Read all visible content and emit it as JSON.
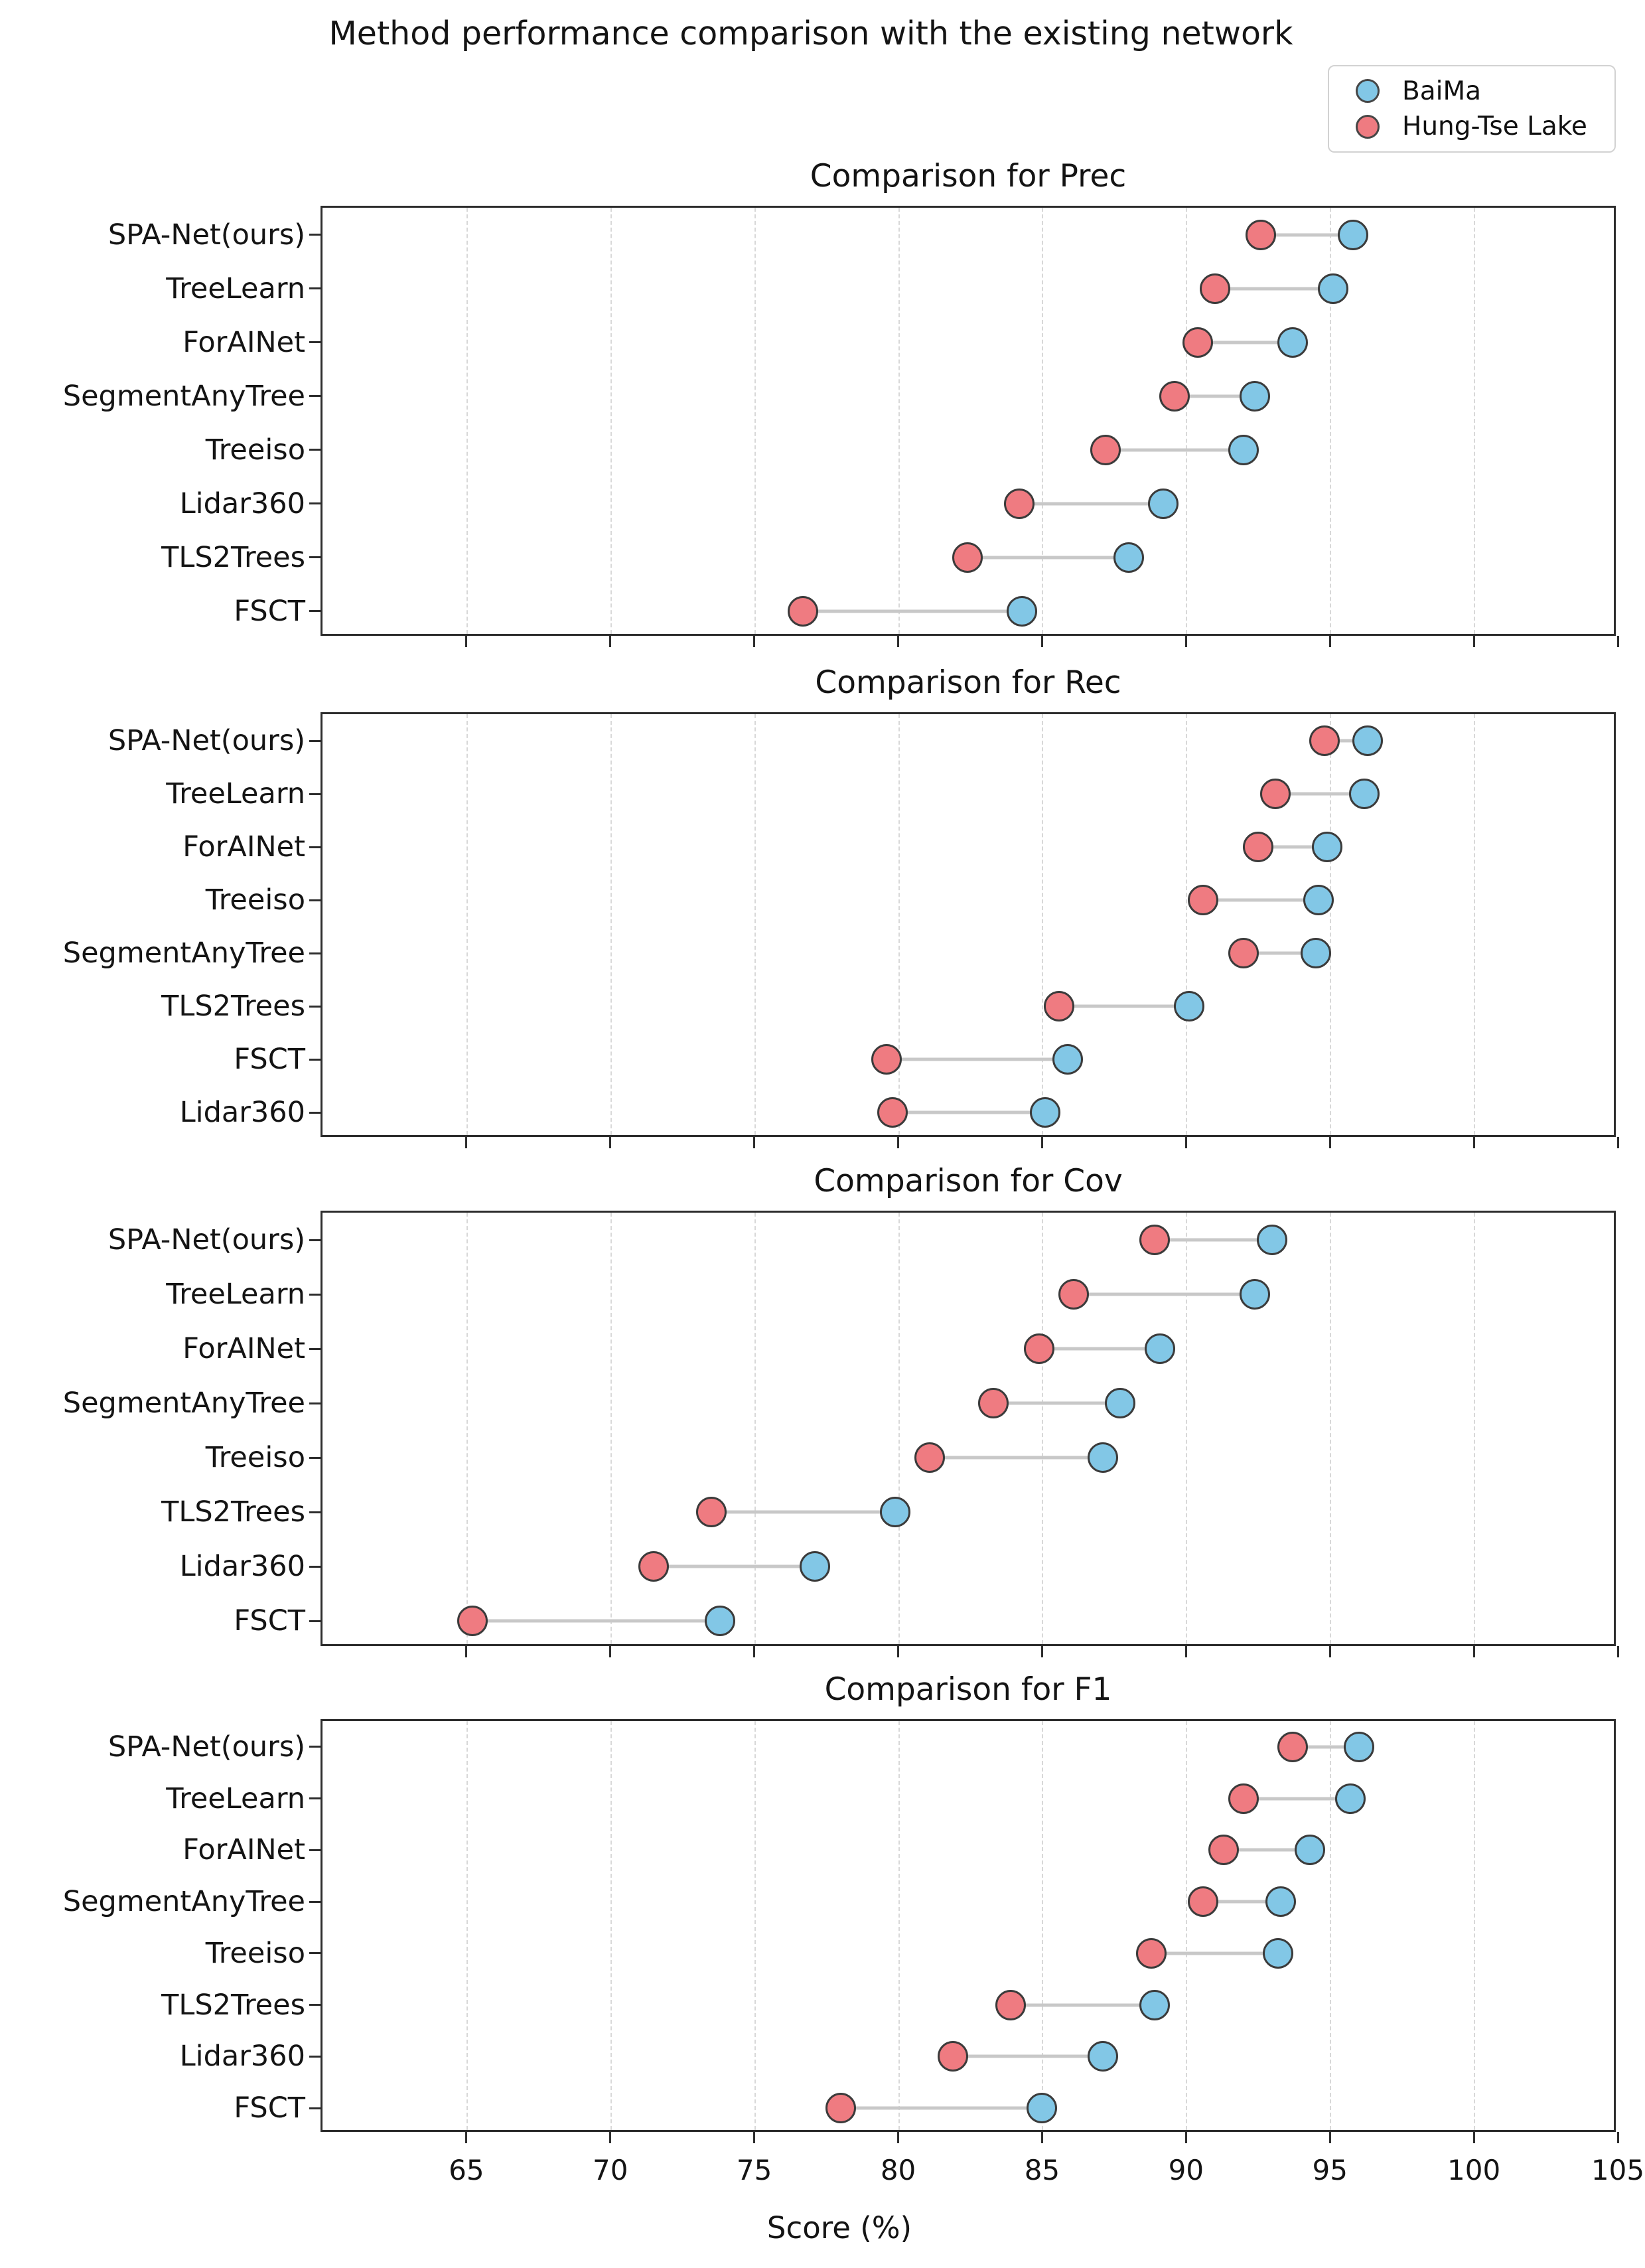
{
  "figure": {
    "title": "Method performance comparison with the existing network",
    "xlabel": "Score (%)",
    "legend": [
      {
        "label": "BaiMa",
        "color": "#82C7E6"
      },
      {
        "label": "Hung-Tse Lake",
        "color": "#EF7B81"
      }
    ]
  },
  "axis": {
    "xmin": 60,
    "xmax": 105,
    "tick_labels": [
      65,
      70,
      75,
      80,
      85,
      90,
      95,
      100,
      105
    ],
    "gridlines": [
      65,
      70,
      75,
      80,
      85,
      90,
      95,
      100
    ]
  },
  "style": {
    "baima_color": "#82C7E6",
    "hungtse_color": "#EF7B81",
    "marker_edge_color": "#3b3b3b",
    "connector_color": "#c8c8c8",
    "grid_color": "#d8d8d8",
    "spine_color": "#2d2d2d"
  },
  "chart_data": [
    {
      "type": "dumbbell",
      "title": "Comparison for Prec",
      "categories": [
        "SPA-Net(ours)",
        "TreeLearn",
        "ForAINet",
        "SegmentAnyTree",
        "Treeiso",
        "Lidar360",
        "TLS2Trees",
        "FSCT"
      ],
      "series": [
        {
          "name": "BaiMa",
          "values": [
            95.8,
            95.1,
            93.7,
            92.4,
            92.0,
            89.2,
            88.0,
            84.3
          ]
        },
        {
          "name": "Hung-Tse Lake",
          "values": [
            92.6,
            91.0,
            90.4,
            89.6,
            87.2,
            84.2,
            82.4,
            76.7
          ]
        }
      ],
      "xlim": [
        60,
        105
      ],
      "grid": true,
      "legend_position": "upper right of figure"
    },
    {
      "type": "dumbbell",
      "title": "Comparison for Rec",
      "categories": [
        "SPA-Net(ours)",
        "TreeLearn",
        "ForAINet",
        "Treeiso",
        "SegmentAnyTree",
        "TLS2Trees",
        "FSCT",
        "Lidar360"
      ],
      "series": [
        {
          "name": "BaiMa",
          "values": [
            96.3,
            96.2,
            94.9,
            94.6,
            94.5,
            90.1,
            85.9,
            85.1
          ]
        },
        {
          "name": "Hung-Tse Lake",
          "values": [
            94.8,
            93.1,
            92.5,
            90.6,
            92.0,
            85.6,
            79.6,
            79.8
          ]
        }
      ],
      "xlim": [
        60,
        105
      ],
      "grid": true
    },
    {
      "type": "dumbbell",
      "title": "Comparison for Cov",
      "categories": [
        "SPA-Net(ours)",
        "TreeLearn",
        "ForAINet",
        "SegmentAnyTree",
        "Treeiso",
        "TLS2Trees",
        "Lidar360",
        "FSCT"
      ],
      "series": [
        {
          "name": "BaiMa",
          "values": [
            93.0,
            92.4,
            89.1,
            87.7,
            87.1,
            79.9,
            77.1,
            73.8
          ]
        },
        {
          "name": "Hung-Tse Lake",
          "values": [
            88.9,
            86.1,
            84.9,
            83.3,
            81.1,
            73.5,
            71.5,
            65.2
          ]
        }
      ],
      "xlim": [
        60,
        105
      ],
      "grid": true
    },
    {
      "type": "dumbbell",
      "title": "Comparison for F1",
      "categories": [
        "SPA-Net(ours)",
        "TreeLearn",
        "ForAINet",
        "SegmentAnyTree",
        "Treeiso",
        "TLS2Trees",
        "Lidar360",
        "FSCT"
      ],
      "series": [
        {
          "name": "BaiMa",
          "values": [
            96.0,
            95.7,
            94.3,
            93.3,
            93.2,
            88.9,
            87.1,
            85.0
          ]
        },
        {
          "name": "Hung-Tse Lake",
          "values": [
            93.7,
            92.0,
            91.3,
            90.6,
            88.8,
            83.9,
            81.9,
            78.0
          ]
        }
      ],
      "xlim": [
        60,
        105
      ],
      "grid": true
    }
  ]
}
